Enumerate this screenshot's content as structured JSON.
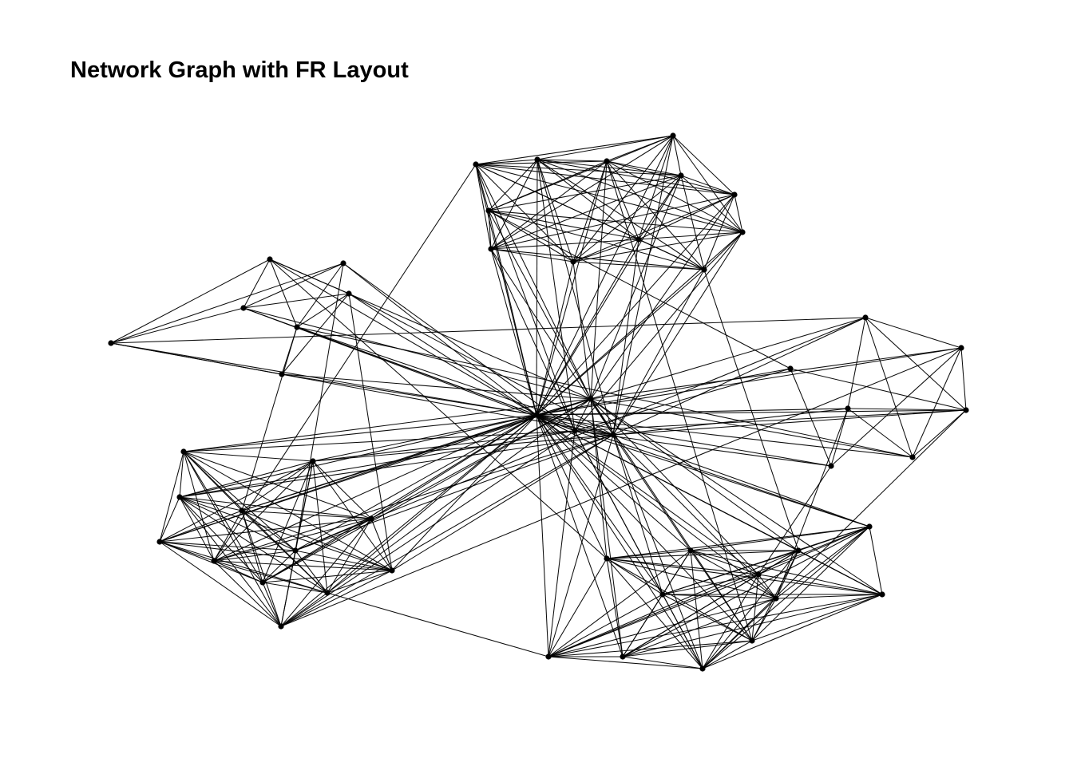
{
  "title": "Network Graph with FR Layout",
  "colors": {
    "edge": "#000000",
    "node": "#000000",
    "background": "#ffffff"
  },
  "graph": {
    "layout": "fruchterman-reingold",
    "nodes": [
      {
        "id": "h1"
      },
      {
        "id": "a1"
      },
      {
        "id": "a2"
      },
      {
        "id": "a3"
      },
      {
        "id": "a4"
      },
      {
        "id": "a5"
      },
      {
        "id": "a6"
      },
      {
        "id": "a7"
      },
      {
        "id": "a8"
      },
      {
        "id": "a9"
      },
      {
        "id": "a10"
      },
      {
        "id": "a11"
      },
      {
        "id": "a12"
      },
      {
        "id": "b1"
      },
      {
        "id": "b2"
      },
      {
        "id": "b3"
      },
      {
        "id": "b4"
      },
      {
        "id": "b5"
      },
      {
        "id": "b6"
      },
      {
        "id": "b7"
      },
      {
        "id": "b8"
      },
      {
        "id": "b9"
      },
      {
        "id": "b10"
      },
      {
        "id": "b11"
      },
      {
        "id": "b12"
      },
      {
        "id": "c1"
      },
      {
        "id": "c2"
      },
      {
        "id": "c3"
      },
      {
        "id": "c4"
      },
      {
        "id": "c5"
      },
      {
        "id": "c6"
      },
      {
        "id": "c7"
      },
      {
        "id": "c8"
      },
      {
        "id": "c9"
      },
      {
        "id": "c10"
      },
      {
        "id": "c11"
      },
      {
        "id": "c12"
      },
      {
        "id": "d1"
      },
      {
        "id": "d2"
      },
      {
        "id": "d3"
      },
      {
        "id": "d4"
      },
      {
        "id": "d5"
      },
      {
        "id": "d6"
      },
      {
        "id": "d7"
      },
      {
        "id": "e1"
      },
      {
        "id": "e2"
      },
      {
        "id": "e3"
      },
      {
        "id": "e4"
      },
      {
        "id": "e5"
      },
      {
        "id": "e6"
      },
      {
        "id": "e7"
      },
      {
        "id": "h2"
      },
      {
        "id": "h3"
      },
      {
        "id": "h4"
      }
    ],
    "edges": [
      [
        "h1",
        "h2"
      ],
      [
        "h1",
        "h3"
      ],
      [
        "h1",
        "h4"
      ],
      [
        "h2",
        "h3"
      ],
      [
        "h2",
        "h4"
      ],
      [
        "h3",
        "h4"
      ],
      [
        "h1",
        "a1"
      ],
      [
        "h1",
        "a2"
      ],
      [
        "h1",
        "a3"
      ],
      [
        "h1",
        "a4"
      ],
      [
        "h1",
        "a5"
      ],
      [
        "h1",
        "a6"
      ],
      [
        "h1",
        "a7"
      ],
      [
        "h1",
        "a8"
      ],
      [
        "h1",
        "a9"
      ],
      [
        "h1",
        "a10"
      ],
      [
        "h1",
        "a11"
      ],
      [
        "h1",
        "a12"
      ],
      [
        "h1",
        "b1"
      ],
      [
        "h1",
        "b2"
      ],
      [
        "h1",
        "b3"
      ],
      [
        "h1",
        "b4"
      ],
      [
        "h1",
        "b5"
      ],
      [
        "h1",
        "b6"
      ],
      [
        "h1",
        "b7"
      ],
      [
        "h1",
        "b8"
      ],
      [
        "h1",
        "b9"
      ],
      [
        "h1",
        "b10"
      ],
      [
        "h1",
        "b11"
      ],
      [
        "h1",
        "b12"
      ],
      [
        "h1",
        "c1"
      ],
      [
        "h1",
        "c2"
      ],
      [
        "h1",
        "c3"
      ],
      [
        "h1",
        "c4"
      ],
      [
        "h1",
        "c5"
      ],
      [
        "h1",
        "c6"
      ],
      [
        "h1",
        "c7"
      ],
      [
        "h1",
        "c8"
      ],
      [
        "h1",
        "c9"
      ],
      [
        "h1",
        "c10"
      ],
      [
        "h1",
        "c11"
      ],
      [
        "h1",
        "c12"
      ],
      [
        "h1",
        "d1"
      ],
      [
        "h1",
        "d2"
      ],
      [
        "h1",
        "d3"
      ],
      [
        "h1",
        "d4"
      ],
      [
        "h1",
        "d5"
      ],
      [
        "h1",
        "d6"
      ],
      [
        "h1",
        "d7"
      ],
      [
        "h1",
        "e1"
      ],
      [
        "h1",
        "e2"
      ],
      [
        "h1",
        "e3"
      ],
      [
        "h1",
        "e4"
      ],
      [
        "h1",
        "e5"
      ],
      [
        "h1",
        "e6"
      ],
      [
        "h1",
        "e7"
      ],
      [
        "h2",
        "a1"
      ],
      [
        "h2",
        "a3"
      ],
      [
        "h2",
        "a5"
      ],
      [
        "h2",
        "a7"
      ],
      [
        "h2",
        "a9"
      ],
      [
        "h2",
        "a11"
      ],
      [
        "h2",
        "b1"
      ],
      [
        "h2",
        "b3"
      ],
      [
        "h2",
        "b5"
      ],
      [
        "h2",
        "b7"
      ],
      [
        "h2",
        "b9"
      ],
      [
        "h2",
        "b11"
      ],
      [
        "h2",
        "c2"
      ],
      [
        "h2",
        "c4"
      ],
      [
        "h2",
        "c6"
      ],
      [
        "h2",
        "c8"
      ],
      [
        "h2",
        "c10"
      ],
      [
        "h2",
        "c12"
      ],
      [
        "h2",
        "d2"
      ],
      [
        "h2",
        "d4"
      ],
      [
        "h2",
        "e1"
      ],
      [
        "h2",
        "e3"
      ],
      [
        "h2",
        "e5"
      ],
      [
        "h3",
        "a2"
      ],
      [
        "h3",
        "a4"
      ],
      [
        "h3",
        "a6"
      ],
      [
        "h3",
        "a8"
      ],
      [
        "h3",
        "a10"
      ],
      [
        "h3",
        "a12"
      ],
      [
        "h3",
        "b2"
      ],
      [
        "h3",
        "b4"
      ],
      [
        "h3",
        "b6"
      ],
      [
        "h3",
        "b8"
      ],
      [
        "h3",
        "b10"
      ],
      [
        "h3",
        "b12"
      ],
      [
        "h3",
        "c1"
      ],
      [
        "h3",
        "c3"
      ],
      [
        "h3",
        "c5"
      ],
      [
        "h3",
        "c7"
      ],
      [
        "h3",
        "c9"
      ],
      [
        "h3",
        "c11"
      ],
      [
        "h3",
        "d1"
      ],
      [
        "h3",
        "d3"
      ],
      [
        "h3",
        "d5"
      ],
      [
        "h3",
        "e2"
      ],
      [
        "h3",
        "e4"
      ],
      [
        "h3",
        "e6"
      ],
      [
        "h4",
        "a1"
      ],
      [
        "h4",
        "a2"
      ],
      [
        "h4",
        "a6"
      ],
      [
        "h4",
        "a10"
      ],
      [
        "h4",
        "b1"
      ],
      [
        "h4",
        "b2"
      ],
      [
        "h4",
        "b6"
      ],
      [
        "h4",
        "b10"
      ],
      [
        "h4",
        "c1"
      ],
      [
        "h4",
        "c3"
      ],
      [
        "h4",
        "c7"
      ],
      [
        "h4",
        "c11"
      ],
      [
        "h4",
        "d3"
      ],
      [
        "h4",
        "d6"
      ],
      [
        "h4",
        "d7"
      ],
      [
        "h4",
        "e3"
      ],
      [
        "h4",
        "e7"
      ],
      [
        "a1",
        "a2"
      ],
      [
        "a1",
        "a3"
      ],
      [
        "a1",
        "a4"
      ],
      [
        "a1",
        "a5"
      ],
      [
        "a1",
        "a6"
      ],
      [
        "a1",
        "a7"
      ],
      [
        "a1",
        "a8"
      ],
      [
        "a1",
        "a9"
      ],
      [
        "a1",
        "a10"
      ],
      [
        "a1",
        "a11"
      ],
      [
        "a1",
        "a12"
      ],
      [
        "a2",
        "a3"
      ],
      [
        "a2",
        "a4"
      ],
      [
        "a2",
        "a5"
      ],
      [
        "a2",
        "a6"
      ],
      [
        "a2",
        "a7"
      ],
      [
        "a2",
        "a8"
      ],
      [
        "a2",
        "a9"
      ],
      [
        "a2",
        "a10"
      ],
      [
        "a2",
        "a11"
      ],
      [
        "a2",
        "a12"
      ],
      [
        "a3",
        "a4"
      ],
      [
        "a3",
        "a5"
      ],
      [
        "a3",
        "a6"
      ],
      [
        "a3",
        "a7"
      ],
      [
        "a3",
        "a8"
      ],
      [
        "a3",
        "a9"
      ],
      [
        "a3",
        "a10"
      ],
      [
        "a3",
        "a11"
      ],
      [
        "a3",
        "a12"
      ],
      [
        "a4",
        "a5"
      ],
      [
        "a4",
        "a6"
      ],
      [
        "a4",
        "a7"
      ],
      [
        "a4",
        "a8"
      ],
      [
        "a4",
        "a9"
      ],
      [
        "a4",
        "a10"
      ],
      [
        "a4",
        "a11"
      ],
      [
        "a5",
        "a6"
      ],
      [
        "a5",
        "a7"
      ],
      [
        "a5",
        "a8"
      ],
      [
        "a5",
        "a9"
      ],
      [
        "a5",
        "a10"
      ],
      [
        "a5",
        "a12"
      ],
      [
        "a6",
        "a7"
      ],
      [
        "a6",
        "a8"
      ],
      [
        "a6",
        "a9"
      ],
      [
        "a6",
        "a11"
      ],
      [
        "a6",
        "a12"
      ],
      [
        "a7",
        "a8"
      ],
      [
        "a7",
        "a9"
      ],
      [
        "a7",
        "a10"
      ],
      [
        "a7",
        "a11"
      ],
      [
        "a7",
        "a12"
      ],
      [
        "a8",
        "a9"
      ],
      [
        "a8",
        "a10"
      ],
      [
        "a8",
        "a11"
      ],
      [
        "a8",
        "a12"
      ],
      [
        "a9",
        "a10"
      ],
      [
        "a9",
        "a11"
      ],
      [
        "a9",
        "a12"
      ],
      [
        "a10",
        "a11"
      ],
      [
        "a10",
        "a12"
      ],
      [
        "a11",
        "a12"
      ],
      [
        "b1",
        "b2"
      ],
      [
        "b1",
        "b3"
      ],
      [
        "b1",
        "b4"
      ],
      [
        "b1",
        "b5"
      ],
      [
        "b1",
        "b6"
      ],
      [
        "b1",
        "b7"
      ],
      [
        "b1",
        "b8"
      ],
      [
        "b1",
        "b9"
      ],
      [
        "b1",
        "b10"
      ],
      [
        "b1",
        "b11"
      ],
      [
        "b1",
        "b12"
      ],
      [
        "b2",
        "b3"
      ],
      [
        "b2",
        "b4"
      ],
      [
        "b2",
        "b5"
      ],
      [
        "b2",
        "b6"
      ],
      [
        "b2",
        "b7"
      ],
      [
        "b2",
        "b8"
      ],
      [
        "b2",
        "b9"
      ],
      [
        "b2",
        "b10"
      ],
      [
        "b2",
        "b11"
      ],
      [
        "b2",
        "b12"
      ],
      [
        "b3",
        "b4"
      ],
      [
        "b3",
        "b5"
      ],
      [
        "b3",
        "b6"
      ],
      [
        "b3",
        "b7"
      ],
      [
        "b3",
        "b8"
      ],
      [
        "b3",
        "b9"
      ],
      [
        "b3",
        "b10"
      ],
      [
        "b3",
        "b11"
      ],
      [
        "b3",
        "b12"
      ],
      [
        "b4",
        "b5"
      ],
      [
        "b4",
        "b6"
      ],
      [
        "b4",
        "b7"
      ],
      [
        "b4",
        "b8"
      ],
      [
        "b4",
        "b9"
      ],
      [
        "b4",
        "b10"
      ],
      [
        "b4",
        "b11"
      ],
      [
        "b4",
        "b12"
      ],
      [
        "b5",
        "b6"
      ],
      [
        "b5",
        "b7"
      ],
      [
        "b5",
        "b8"
      ],
      [
        "b5",
        "b9"
      ],
      [
        "b5",
        "b10"
      ],
      [
        "b5",
        "b11"
      ],
      [
        "b5",
        "b12"
      ],
      [
        "b6",
        "b7"
      ],
      [
        "b6",
        "b8"
      ],
      [
        "b6",
        "b9"
      ],
      [
        "b6",
        "b10"
      ],
      [
        "b6",
        "b11"
      ],
      [
        "b6",
        "b12"
      ],
      [
        "b7",
        "b8"
      ],
      [
        "b7",
        "b9"
      ],
      [
        "b7",
        "b10"
      ],
      [
        "b7",
        "b11"
      ],
      [
        "b7",
        "b12"
      ],
      [
        "b8",
        "b9"
      ],
      [
        "b8",
        "b10"
      ],
      [
        "b8",
        "b11"
      ],
      [
        "b8",
        "b12"
      ],
      [
        "b9",
        "b10"
      ],
      [
        "b9",
        "b11"
      ],
      [
        "b9",
        "b12"
      ],
      [
        "b10",
        "b11"
      ],
      [
        "b10",
        "b12"
      ],
      [
        "b11",
        "b12"
      ],
      [
        "c1",
        "c2"
      ],
      [
        "c1",
        "c3"
      ],
      [
        "c1",
        "c4"
      ],
      [
        "c1",
        "c5"
      ],
      [
        "c1",
        "c6"
      ],
      [
        "c1",
        "c7"
      ],
      [
        "c1",
        "c8"
      ],
      [
        "c1",
        "c9"
      ],
      [
        "c1",
        "c10"
      ],
      [
        "c1",
        "c11"
      ],
      [
        "c1",
        "c12"
      ],
      [
        "c2",
        "c3"
      ],
      [
        "c2",
        "c4"
      ],
      [
        "c2",
        "c5"
      ],
      [
        "c2",
        "c6"
      ],
      [
        "c2",
        "c7"
      ],
      [
        "c2",
        "c8"
      ],
      [
        "c2",
        "c9"
      ],
      [
        "c2",
        "c10"
      ],
      [
        "c2",
        "c11"
      ],
      [
        "c2",
        "c12"
      ],
      [
        "c3",
        "c4"
      ],
      [
        "c3",
        "c5"
      ],
      [
        "c3",
        "c6"
      ],
      [
        "c3",
        "c7"
      ],
      [
        "c3",
        "c8"
      ],
      [
        "c3",
        "c9"
      ],
      [
        "c3",
        "c10"
      ],
      [
        "c3",
        "c11"
      ],
      [
        "c3",
        "c12"
      ],
      [
        "c4",
        "c5"
      ],
      [
        "c4",
        "c6"
      ],
      [
        "c4",
        "c7"
      ],
      [
        "c4",
        "c8"
      ],
      [
        "c4",
        "c9"
      ],
      [
        "c4",
        "c10"
      ],
      [
        "c4",
        "c11"
      ],
      [
        "c4",
        "c12"
      ],
      [
        "c5",
        "c6"
      ],
      [
        "c5",
        "c7"
      ],
      [
        "c5",
        "c8"
      ],
      [
        "c5",
        "c9"
      ],
      [
        "c5",
        "c10"
      ],
      [
        "c5",
        "c11"
      ],
      [
        "c5",
        "c12"
      ],
      [
        "c6",
        "c7"
      ],
      [
        "c6",
        "c8"
      ],
      [
        "c6",
        "c9"
      ],
      [
        "c6",
        "c10"
      ],
      [
        "c6",
        "c11"
      ],
      [
        "c6",
        "c12"
      ],
      [
        "c7",
        "c8"
      ],
      [
        "c7",
        "c9"
      ],
      [
        "c7",
        "c10"
      ],
      [
        "c7",
        "c11"
      ],
      [
        "c7",
        "c12"
      ],
      [
        "c8",
        "c9"
      ],
      [
        "c8",
        "c10"
      ],
      [
        "c8",
        "c11"
      ],
      [
        "c8",
        "c12"
      ],
      [
        "c9",
        "c10"
      ],
      [
        "c9",
        "c11"
      ],
      [
        "c9",
        "c12"
      ],
      [
        "c10",
        "c11"
      ],
      [
        "c10",
        "c12"
      ],
      [
        "c11",
        "c12"
      ],
      [
        "d1",
        "d2"
      ],
      [
        "d1",
        "d3"
      ],
      [
        "d1",
        "d4"
      ],
      [
        "d1",
        "d5"
      ],
      [
        "d2",
        "d3"
      ],
      [
        "d2",
        "d4"
      ],
      [
        "d2",
        "d6"
      ],
      [
        "d3",
        "d4"
      ],
      [
        "d3",
        "d5"
      ],
      [
        "d3",
        "d7"
      ],
      [
        "d4",
        "d5"
      ],
      [
        "d5",
        "d6"
      ],
      [
        "d6",
        "d7"
      ],
      [
        "e1",
        "e2"
      ],
      [
        "e1",
        "e3"
      ],
      [
        "e1",
        "e4"
      ],
      [
        "e1",
        "e6"
      ],
      [
        "e2",
        "e3"
      ],
      [
        "e2",
        "e5"
      ],
      [
        "e2",
        "e6"
      ],
      [
        "e3",
        "e4"
      ],
      [
        "e3",
        "e7"
      ],
      [
        "e4",
        "e5"
      ],
      [
        "e4",
        "e7"
      ],
      [
        "e5",
        "e6"
      ],
      [
        "e6",
        "e7"
      ],
      [
        "e4",
        "d1"
      ],
      [
        "d1",
        "b12"
      ],
      [
        "a1",
        "b4"
      ],
      [
        "c3",
        "d3"
      ],
      [
        "e6",
        "d4"
      ],
      [
        "c12",
        "d6"
      ],
      [
        "a3",
        "c4"
      ],
      [
        "b7",
        "c1"
      ],
      [
        "b8",
        "e2"
      ],
      [
        "a11",
        "d7"
      ],
      [
        "c10",
        "e1"
      ],
      [
        "b11",
        "e6"
      ],
      [
        "d2",
        "b6"
      ],
      [
        "a12",
        "c8"
      ],
      [
        "b12",
        "e7"
      ],
      [
        "c5",
        "d5"
      ]
    ]
  }
}
